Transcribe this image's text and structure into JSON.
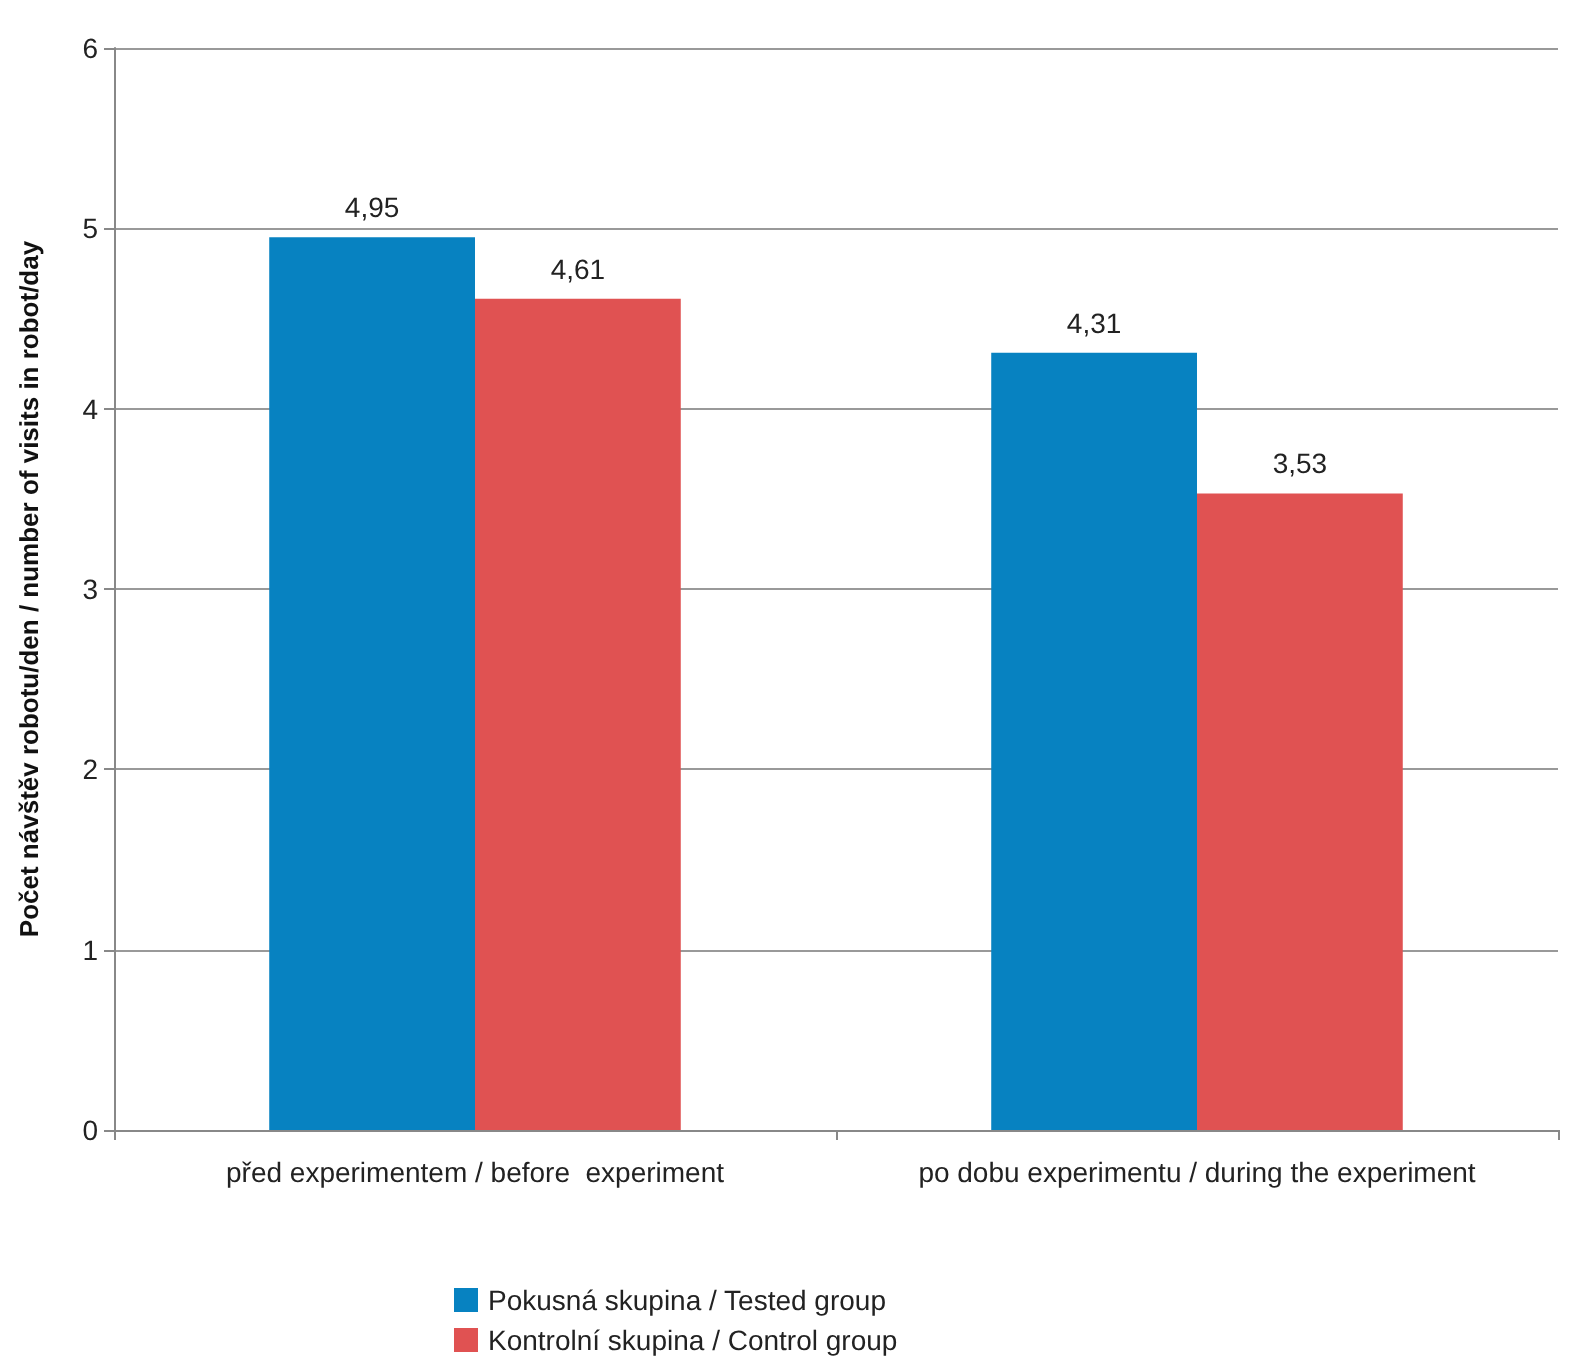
{
  "chart_data": {
    "type": "bar",
    "ylabel": "Počet návštěv robotu/den / number of visits in robot/day",
    "categories": [
      "před experimentem / before  experiment",
      "po dobu experimentu / during the experiment"
    ],
    "series": [
      {
        "name": "Pokusná skupina / Tested group",
        "color": "#0782c1",
        "values": [
          4.95,
          4.31
        ],
        "value_labels": [
          "4,95",
          "4,31"
        ]
      },
      {
        "name": "Kontrolní skupina / Control group",
        "color": "#e05252",
        "values": [
          4.61,
          3.53
        ],
        "value_labels": [
          "4,61",
          "3,53"
        ]
      }
    ],
    "ylim": [
      0,
      6
    ],
    "yticks": [
      0,
      1,
      2,
      3,
      4,
      5,
      6
    ],
    "grid": "y",
    "legend": "bottom"
  }
}
